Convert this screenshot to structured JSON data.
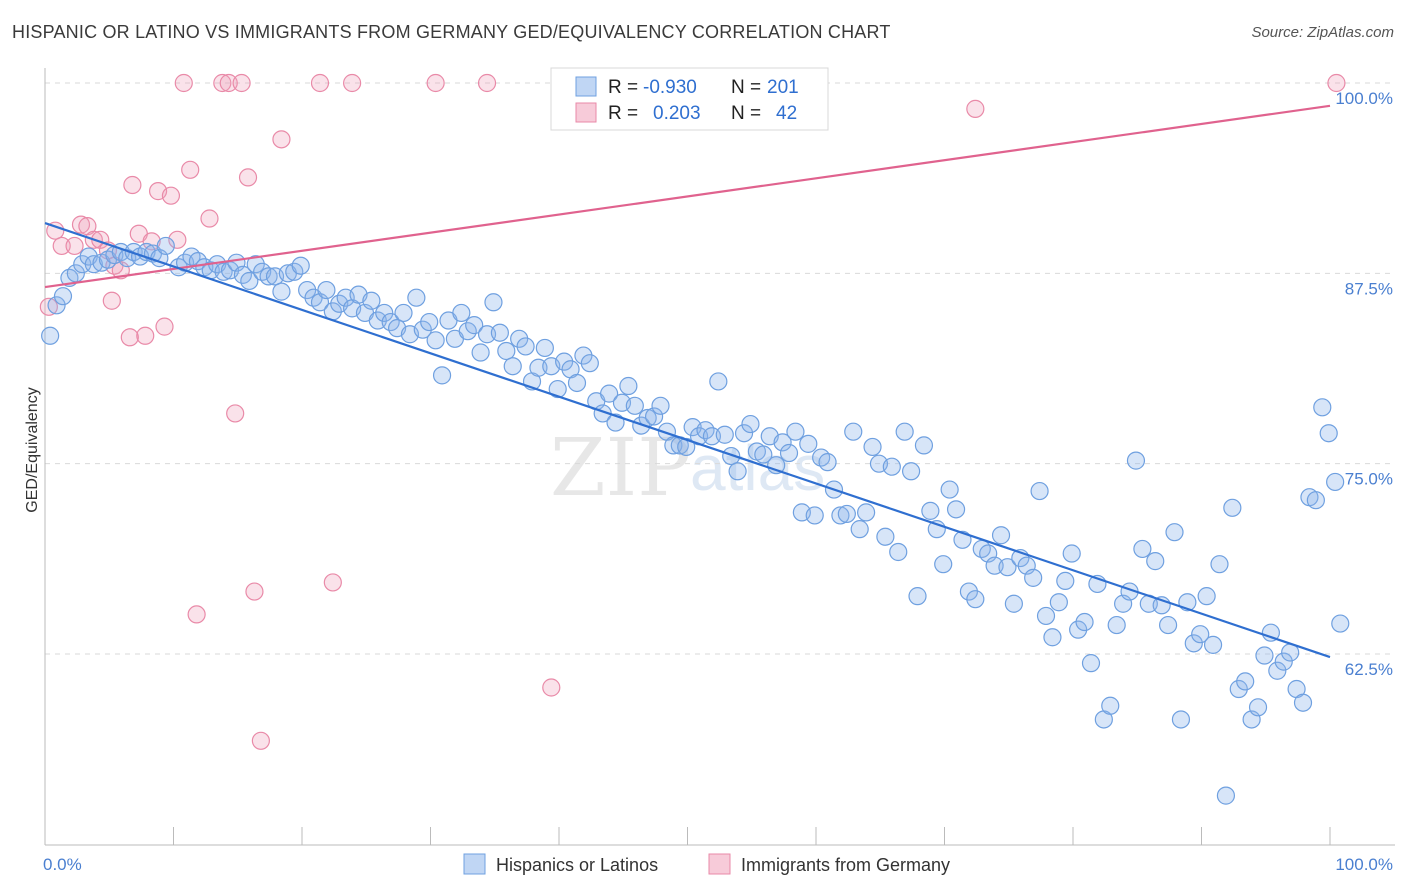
{
  "title": "HISPANIC OR LATINO VS IMMIGRANTS FROM GERMANY GED/EQUIVALENCY CORRELATION CHART",
  "source": "Source: ZipAtlas.com",
  "watermark": "ZIPatlas",
  "colors": {
    "blue": "#6fa0e0",
    "blue_fill": "rgba(140,180,235,0.35)",
    "blue_line": "#2f6fd0",
    "pink": "#e98aa8",
    "pink_fill": "rgba(240,160,185,0.30)",
    "pink_line": "#e0628e",
    "axis_label": "#4a7fd0"
  },
  "legend_top": {
    "rows": [
      {
        "r_label": "R =",
        "r_value": "-0.930",
        "n_label": "N =",
        "n_value": "201"
      },
      {
        "r_label": "R =",
        "r_value": "0.203",
        "n_label": "N =",
        "n_value": "42"
      }
    ]
  },
  "legend_bottom": [
    "Hispanics or Latinos",
    "Immigrants from Germany"
  ],
  "chart_data": {
    "type": "scatter",
    "title": "HISPANIC OR LATINO VS IMMIGRANTS FROM GERMANY GED/EQUIVALENCY CORRELATION CHART",
    "xlabel": "",
    "ylabel": "GED/Equivalency",
    "xlim": [
      0,
      100
    ],
    "ylim": [
      50.5,
      100.5
    ],
    "x_tick_labels": [
      "0.0%",
      "100.0%"
    ],
    "y_ticks": [
      62.5,
      75.0,
      87.5,
      100.0
    ],
    "y_tick_labels": [
      "62.5%",
      "75.0%",
      "87.5%",
      "100.0%"
    ],
    "grid": true,
    "legend": "bottom",
    "series": [
      {
        "name": "Hispanics or Latinos",
        "color": "#6fa0e0",
        "trend": {
          "x": [
            0,
            100
          ],
          "y": [
            90.8,
            62.3
          ]
        },
        "points": [
          [
            0.4,
            83.4
          ],
          [
            0.9,
            85.4
          ],
          [
            1.4,
            86
          ],
          [
            1.9,
            87.2
          ],
          [
            2.4,
            87.5
          ],
          [
            2.9,
            88.1
          ],
          [
            3.4,
            88.6
          ],
          [
            3.8,
            88.1
          ],
          [
            4.4,
            88.2
          ],
          [
            4.9,
            88.4
          ],
          [
            5.4,
            88.7
          ],
          [
            5.9,
            88.9
          ],
          [
            6.4,
            88.5
          ],
          [
            6.9,
            88.9
          ],
          [
            7.4,
            88.6
          ],
          [
            7.9,
            88.9
          ],
          [
            8.4,
            88.8
          ],
          [
            8.9,
            88.5
          ],
          [
            9.4,
            89.3
          ],
          [
            10.4,
            87.9
          ],
          [
            10.9,
            88.2
          ],
          [
            11.4,
            88.6
          ],
          [
            11.9,
            88.3
          ],
          [
            12.4,
            87.9
          ],
          [
            12.9,
            87.7
          ],
          [
            13.4,
            88.1
          ],
          [
            13.9,
            87.6
          ],
          [
            14.4,
            87.7
          ],
          [
            14.9,
            88.2
          ],
          [
            15.4,
            87.4
          ],
          [
            15.9,
            87
          ],
          [
            16.4,
            88.1
          ],
          [
            16.9,
            87.6
          ],
          [
            17.4,
            87.3
          ],
          [
            17.9,
            87.3
          ],
          [
            18.4,
            86.3
          ],
          [
            18.9,
            87.5
          ],
          [
            19.4,
            87.6
          ],
          [
            19.9,
            88
          ],
          [
            20.4,
            86.4
          ],
          [
            20.9,
            85.9
          ],
          [
            21.4,
            85.6
          ],
          [
            21.9,
            86.4
          ],
          [
            22.4,
            85
          ],
          [
            22.9,
            85.5
          ],
          [
            23.4,
            85.9
          ],
          [
            23.9,
            85.2
          ],
          [
            24.4,
            86.1
          ],
          [
            24.9,
            84.9
          ],
          [
            25.4,
            85.7
          ],
          [
            25.9,
            84.4
          ],
          [
            26.4,
            84.9
          ],
          [
            26.9,
            84.3
          ],
          [
            27.4,
            83.9
          ],
          [
            27.9,
            84.9
          ],
          [
            28.4,
            83.5
          ],
          [
            28.9,
            85.9
          ],
          [
            29.4,
            83.8
          ],
          [
            29.9,
            84.3
          ],
          [
            30.4,
            83.1
          ],
          [
            30.9,
            80.8
          ],
          [
            31.4,
            84.4
          ],
          [
            31.9,
            83.2
          ],
          [
            32.4,
            84.9
          ],
          [
            32.9,
            83.7
          ],
          [
            33.4,
            84.1
          ],
          [
            33.9,
            82.3
          ],
          [
            34.4,
            83.5
          ],
          [
            34.9,
            85.6
          ],
          [
            35.4,
            83.6
          ],
          [
            35.9,
            82.4
          ],
          [
            36.4,
            81.4
          ],
          [
            36.9,
            83.2
          ],
          [
            37.4,
            82.7
          ],
          [
            37.9,
            80.4
          ],
          [
            38.4,
            81.3
          ],
          [
            38.9,
            82.6
          ],
          [
            39.4,
            81.4
          ],
          [
            39.9,
            79.9
          ],
          [
            40.4,
            81.7
          ],
          [
            40.9,
            81.2
          ],
          [
            41.4,
            80.3
          ],
          [
            41.9,
            82.1
          ],
          [
            42.4,
            81.6
          ],
          [
            42.9,
            79.1
          ],
          [
            43.4,
            78.3
          ],
          [
            43.9,
            79.6
          ],
          [
            44.4,
            77.7
          ],
          [
            44.9,
            79
          ],
          [
            45.4,
            80.1
          ],
          [
            45.9,
            78.8
          ],
          [
            46.4,
            77.5
          ],
          [
            46.9,
            78
          ],
          [
            47.4,
            78.1
          ],
          [
            47.9,
            78.8
          ],
          [
            48.4,
            77.1
          ],
          [
            48.9,
            76.2
          ],
          [
            49.4,
            76.2
          ],
          [
            49.9,
            76.1
          ],
          [
            50.4,
            77.4
          ],
          [
            50.9,
            76.8
          ],
          [
            51.4,
            77.2
          ],
          [
            51.9,
            76.8
          ],
          [
            52.4,
            80.4
          ],
          [
            52.9,
            76.9
          ],
          [
            53.4,
            75.5
          ],
          [
            53.9,
            74.5
          ],
          [
            54.4,
            77
          ],
          [
            54.9,
            77.6
          ],
          [
            55.4,
            75.8
          ],
          [
            55.9,
            75.6
          ],
          [
            56.4,
            76.8
          ],
          [
            56.9,
            74.9
          ],
          [
            57.4,
            76.4
          ],
          [
            57.9,
            75.7
          ],
          [
            58.4,
            77.1
          ],
          [
            58.9,
            71.8
          ],
          [
            59.4,
            76.3
          ],
          [
            59.9,
            71.6
          ],
          [
            60.4,
            75.4
          ],
          [
            60.9,
            75.1
          ],
          [
            61.4,
            73.3
          ],
          [
            61.9,
            71.6
          ],
          [
            62.4,
            71.7
          ],
          [
            62.9,
            77.1
          ],
          [
            63.4,
            70.7
          ],
          [
            63.9,
            71.8
          ],
          [
            64.4,
            76.1
          ],
          [
            64.9,
            75
          ],
          [
            65.4,
            70.2
          ],
          [
            65.9,
            74.8
          ],
          [
            66.4,
            69.2
          ],
          [
            66.9,
            77.1
          ],
          [
            67.4,
            74.5
          ],
          [
            67.9,
            66.3
          ],
          [
            68.4,
            76.2
          ],
          [
            68.9,
            71.9
          ],
          [
            69.4,
            70.7
          ],
          [
            69.9,
            68.4
          ],
          [
            70.4,
            73.3
          ],
          [
            70.9,
            72
          ],
          [
            71.4,
            70
          ],
          [
            71.9,
            66.6
          ],
          [
            72.4,
            66.1
          ],
          [
            72.9,
            69.4
          ],
          [
            73.4,
            69.1
          ],
          [
            73.9,
            68.3
          ],
          [
            74.4,
            70.3
          ],
          [
            74.9,
            68.2
          ],
          [
            75.4,
            65.8
          ],
          [
            75.9,
            68.8
          ],
          [
            76.4,
            68.3
          ],
          [
            76.9,
            67.5
          ],
          [
            77.4,
            73.2
          ],
          [
            77.9,
            65
          ],
          [
            78.4,
            63.6
          ],
          [
            78.9,
            65.9
          ],
          [
            79.4,
            67.3
          ],
          [
            79.9,
            69.1
          ],
          [
            80.4,
            64.1
          ],
          [
            80.9,
            64.6
          ],
          [
            81.4,
            61.9
          ],
          [
            81.9,
            67.1
          ],
          [
            82.4,
            58.2
          ],
          [
            82.9,
            59.1
          ],
          [
            83.4,
            64.4
          ],
          [
            83.9,
            65.8
          ],
          [
            84.4,
            66.6
          ],
          [
            84.9,
            75.2
          ],
          [
            85.4,
            69.4
          ],
          [
            85.9,
            65.8
          ],
          [
            86.4,
            68.6
          ],
          [
            86.9,
            65.7
          ],
          [
            87.4,
            64.4
          ],
          [
            87.9,
            70.5
          ],
          [
            88.4,
            58.2
          ],
          [
            88.9,
            65.9
          ],
          [
            89.4,
            63.2
          ],
          [
            89.9,
            63.8
          ],
          [
            90.4,
            66.3
          ],
          [
            90.9,
            63.1
          ],
          [
            91.4,
            68.4
          ],
          [
            91.9,
            53.2
          ],
          [
            92.4,
            72.1
          ],
          [
            92.9,
            60.2
          ],
          [
            93.4,
            60.7
          ],
          [
            93.9,
            58.2
          ],
          [
            94.4,
            59
          ],
          [
            94.9,
            62.4
          ],
          [
            95.4,
            63.9
          ],
          [
            95.9,
            61.4
          ],
          [
            96.4,
            62
          ],
          [
            96.9,
            62.6
          ],
          [
            97.4,
            60.2
          ],
          [
            97.9,
            59.3
          ],
          [
            98.4,
            72.8
          ],
          [
            98.9,
            72.6
          ],
          [
            99.4,
            78.7
          ],
          [
            99.9,
            77
          ],
          [
            100.4,
            73.8
          ],
          [
            100.8,
            64.5
          ]
        ]
      },
      {
        "name": "Immigrants from Germany",
        "color": "#e98aa8",
        "trend": {
          "x": [
            0,
            100
          ],
          "y": [
            86.6,
            98.5
          ]
        },
        "points": [
          [
            0.3,
            85.3
          ],
          [
            0.8,
            90.3
          ],
          [
            1.3,
            89.3
          ],
          [
            2.3,
            89.3
          ],
          [
            2.8,
            90.7
          ],
          [
            3.3,
            90.6
          ],
          [
            3.8,
            89.7
          ],
          [
            4.3,
            89.7
          ],
          [
            4.9,
            89
          ],
          [
            5.4,
            88
          ],
          [
            5.9,
            87.7
          ],
          [
            6.8,
            93.3
          ],
          [
            7.3,
            90.1
          ],
          [
            7.8,
            83.4
          ],
          [
            8.3,
            89.6
          ],
          [
            8.8,
            92.9
          ],
          [
            9.3,
            84
          ],
          [
            9.8,
            92.6
          ],
          [
            10.3,
            89.7
          ],
          [
            10.8,
            100
          ],
          [
            11.3,
            94.3
          ],
          [
            11.8,
            65.1
          ],
          [
            12.8,
            91.1
          ],
          [
            13.8,
            100
          ],
          [
            14.3,
            100
          ],
          [
            14.8,
            78.3
          ],
          [
            15.3,
            100
          ],
          [
            15.8,
            93.8
          ],
          [
            16.3,
            66.6
          ],
          [
            16.8,
            56.8
          ],
          [
            18.4,
            96.3
          ],
          [
            21.4,
            100
          ],
          [
            22.4,
            67.2
          ],
          [
            23.9,
            100
          ],
          [
            30.4,
            100
          ],
          [
            34.4,
            100
          ],
          [
            39.4,
            60.3
          ],
          [
            45.4,
            100
          ],
          [
            72.4,
            98.3
          ],
          [
            100.5,
            100
          ],
          [
            5.2,
            85.7
          ],
          [
            6.6,
            83.3
          ]
        ]
      }
    ]
  }
}
